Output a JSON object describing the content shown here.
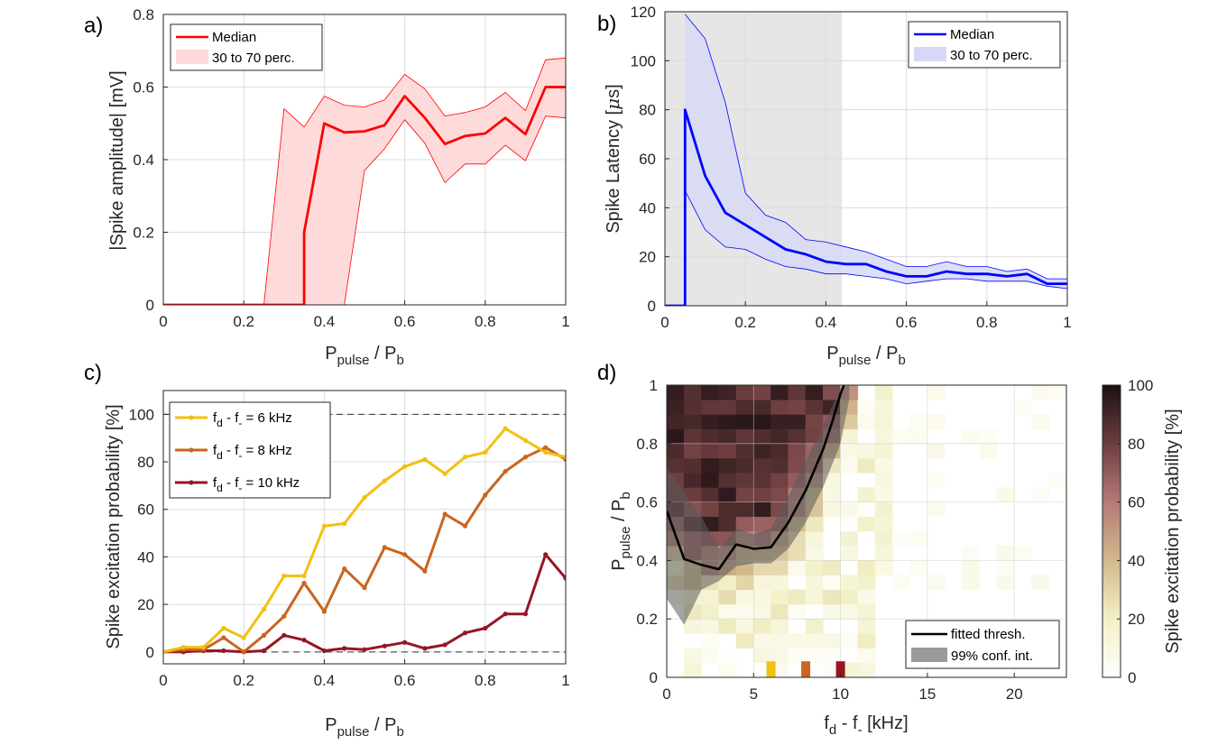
{
  "chart_data": [
    {
      "panel_label": "a)",
      "type": "line",
      "xlabel": {
        "main": "P",
        "sub1": "pulse",
        "mid": " / P",
        "sub2": "b"
      },
      "ylabel": "|Spike amplitude| [mV]",
      "xlim": [
        0,
        1
      ],
      "ylim": [
        0,
        0.8
      ],
      "xticks": [
        "0",
        "0.2",
        "0.4",
        "0.6",
        "0.8",
        "1"
      ],
      "yticks": [
        "0",
        "0.2",
        "0.4",
        "0.6",
        "0.8"
      ],
      "grid": true,
      "legend_position": "top-left",
      "legend": [
        "Median",
        "30 to 70 perc."
      ],
      "series": [
        {
          "name": "Median",
          "color": "#ff0000",
          "x": [
            0,
            0.25,
            0.3,
            0.35,
            0.35,
            0.4,
            0.45,
            0.5,
            0.55,
            0.6,
            0.65,
            0.7,
            0.75,
            0.8,
            0.85,
            0.9,
            0.95,
            1.0
          ],
          "y": [
            0,
            0,
            0,
            0,
            0.2,
            0.5,
            0.475,
            0.478,
            0.495,
            0.575,
            0.515,
            0.443,
            0.465,
            0.472,
            0.515,
            0.47,
            0.6,
            0.6
          ]
        },
        {
          "name": "30 to 70 perc.",
          "color": "#ff0000",
          "fill": "#ffdada",
          "x": [
            0,
            0.25,
            0.3,
            0.35,
            0.4,
            0.45,
            0.5,
            0.55,
            0.6,
            0.65,
            0.7,
            0.75,
            0.8,
            0.85,
            0.9,
            0.95,
            1.0
          ],
          "upper": [
            0,
            0,
            0.54,
            0.49,
            0.575,
            0.55,
            0.545,
            0.565,
            0.635,
            0.595,
            0.52,
            0.53,
            0.545,
            0.585,
            0.535,
            0.675,
            0.68
          ],
          "lower": [
            0,
            0,
            0,
            0,
            0,
            0,
            0.37,
            0.43,
            0.51,
            0.445,
            0.337,
            0.388,
            0.388,
            0.44,
            0.397,
            0.52,
            0.515
          ]
        }
      ]
    },
    {
      "panel_label": "b)",
      "type": "line",
      "xlabel": {
        "main": "P",
        "sub1": "pulse",
        "mid": " / P",
        "sub2": "b"
      },
      "ylabel": {
        "main": "Spike Latency [",
        "mu": "μ",
        "end": "s]"
      },
      "xlim": [
        0,
        1
      ],
      "ylim": [
        0,
        120
      ],
      "xticks": [
        "0",
        "0.2",
        "0.4",
        "0.6",
        "0.8",
        "1"
      ],
      "yticks": [
        "0",
        "20",
        "40",
        "60",
        "80",
        "100",
        "120"
      ],
      "grid": true,
      "shaded_region": {
        "x": [
          0,
          0.44
        ],
        "color": "#e6e6e6"
      },
      "legend_position": "top-right",
      "legend": [
        "Median",
        "30 to 70 perc."
      ],
      "series": [
        {
          "name": "Median",
          "color": "#0000ff",
          "x": [
            0,
            0.05,
            0.05,
            0.1,
            0.15,
            0.2,
            0.25,
            0.3,
            0.35,
            0.4,
            0.45,
            0.5,
            0.55,
            0.6,
            0.65,
            0.7,
            0.75,
            0.8,
            0.85,
            0.9,
            0.95,
            1.0
          ],
          "y": [
            0,
            0,
            80,
            53,
            38,
            33,
            28,
            23,
            21,
            18,
            17,
            17,
            14,
            12,
            12,
            14,
            13,
            13,
            12,
            13,
            9,
            9
          ]
        },
        {
          "name": "30 to 70 perc.",
          "color": "#0000ff",
          "fill": "#d6d9f5",
          "x": [
            0.05,
            0.1,
            0.15,
            0.2,
            0.25,
            0.3,
            0.35,
            0.4,
            0.45,
            0.5,
            0.55,
            0.6,
            0.65,
            0.7,
            0.75,
            0.8,
            0.85,
            0.9,
            0.95,
            1.0
          ],
          "upper": [
            119,
            109,
            83,
            46,
            37,
            34,
            27,
            26,
            24,
            22,
            19,
            16,
            16,
            18,
            16,
            16,
            14,
            15,
            11,
            11
          ],
          "lower": [
            47,
            31,
            24,
            23,
            19,
            16,
            15,
            13,
            13,
            12,
            11,
            9,
            10,
            11,
            11,
            10,
            10,
            10,
            8,
            7
          ]
        }
      ]
    },
    {
      "panel_label": "c)",
      "type": "line",
      "xlabel": {
        "main": "P",
        "sub1": "pulse",
        "mid": " / P",
        "sub2": "b"
      },
      "ylabel": "Spike excitation probability [%]",
      "xlim": [
        0,
        1
      ],
      "ylim": [
        -5,
        110
      ],
      "xticks": [
        "0",
        "0.2",
        "0.4",
        "0.6",
        "0.8",
        "1"
      ],
      "yticks": [
        "0",
        "20",
        "40",
        "60",
        "80",
        "100"
      ],
      "grid": true,
      "reference_lines": [
        0,
        100
      ],
      "legend_position": "top-left",
      "legend_prefix": {
        "f": "f",
        "d": "d",
        "dash": " - f",
        "minus": "-",
        "eq": " = "
      },
      "series": [
        {
          "name": "6 kHz",
          "color": "#f2c010",
          "x": [
            0,
            0.05,
            0.1,
            0.15,
            0.2,
            0.25,
            0.3,
            0.35,
            0.4,
            0.45,
            0.5,
            0.55,
            0.6,
            0.65,
            0.7,
            0.75,
            0.8,
            0.85,
            0.9,
            0.95,
            1.0
          ],
          "y": [
            0,
            2,
            2,
            10,
            6,
            18,
            32,
            32,
            53,
            54,
            65,
            72,
            78,
            81,
            75,
            82,
            84,
            94,
            89,
            84,
            82
          ]
        },
        {
          "name": "8 kHz",
          "color": "#c9651e",
          "x": [
            0,
            0.05,
            0.1,
            0.15,
            0.2,
            0.25,
            0.3,
            0.35,
            0.4,
            0.45,
            0.5,
            0.55,
            0.6,
            0.65,
            0.7,
            0.75,
            0.8,
            0.85,
            0.9,
            0.95,
            1.0
          ],
          "y": [
            0,
            1,
            1,
            6,
            0,
            7,
            15,
            29,
            17,
            35,
            27,
            44,
            41,
            34,
            58,
            53,
            66,
            76,
            82,
            86,
            81
          ]
        },
        {
          "name": "10 kHz",
          "color": "#961624",
          "x": [
            0,
            0.05,
            0.1,
            0.15,
            0.2,
            0.25,
            0.3,
            0.35,
            0.4,
            0.45,
            0.5,
            0.55,
            0.6,
            0.65,
            0.7,
            0.75,
            0.8,
            0.85,
            0.9,
            0.95,
            1.0
          ],
          "y": [
            0,
            0,
            0.5,
            0.5,
            0,
            0.5,
            7,
            5,
            0.5,
            1.5,
            1,
            2.5,
            4,
            1.5,
            3,
            8,
            10,
            16,
            16,
            41,
            31
          ]
        }
      ]
    },
    {
      "panel_label": "d)",
      "type": "heatmap",
      "xlabel": {
        "f": "f",
        "d": "d",
        "dash": " - f",
        "minus": "-",
        "unit": " [kHz]"
      },
      "ylabel": {
        "main": "P",
        "sub1": "pulse",
        "mid": " / P",
        "sub2": "b"
      },
      "xlim": [
        0,
        23
      ],
      "ylim": [
        0,
        1
      ],
      "xticks": [
        "0",
        "5",
        "10",
        "15",
        "20"
      ],
      "yticks": [
        "0",
        "0.2",
        "0.4",
        "0.6",
        "0.8",
        "1"
      ],
      "grid": true,
      "colorbar": {
        "label": "Spike excitation probability [%]",
        "range": [
          0,
          100
        ],
        "ticks": [
          "0",
          "20",
          "40",
          "60",
          "80",
          "100"
        ]
      },
      "cell_size": {
        "x": 1,
        "y": 0.05
      },
      "thresh_profile": {
        "x": [
          0,
          1,
          2,
          3,
          4,
          5,
          6,
          7,
          8,
          9,
          10,
          11
        ],
        "y": [
          0.55,
          0.4,
          0.39,
          0.37,
          0.42,
          0.44,
          0.44,
          0.52,
          0.6,
          0.73,
          0.88,
          1.05
        ]
      },
      "legend_position": "bottom-right",
      "legend": [
        "fitted thresh.",
        "99% conf. int."
      ],
      "fitted_threshold": {
        "color": "#000000",
        "x": [
          0,
          1,
          2,
          3,
          4,
          5,
          6,
          7,
          8,
          9,
          9.5,
          10,
          10.2
        ],
        "y": [
          0.57,
          0.405,
          0.385,
          0.37,
          0.455,
          0.44,
          0.445,
          0.53,
          0.64,
          0.78,
          0.87,
          0.97,
          1.0
        ]
      },
      "confidence_band": {
        "color": "#5a5a5a",
        "x": [
          0,
          1,
          2,
          3,
          4,
          5,
          6,
          7,
          8,
          9,
          10,
          10.5
        ],
        "upper": [
          0.72,
          0.63,
          0.55,
          0.44,
          0.51,
          0.49,
          0.51,
          0.62,
          0.74,
          0.86,
          0.99,
          1.0
        ],
        "lower": [
          0.27,
          0.18,
          0.3,
          0.33,
          0.38,
          0.39,
          0.39,
          0.44,
          0.53,
          0.65,
          0.8,
          0.95
        ]
      },
      "markers": [
        {
          "x": 6,
          "color": "#f2c010"
        },
        {
          "x": 8,
          "color": "#c9651e"
        },
        {
          "x": 10,
          "color": "#961624"
        }
      ]
    }
  ]
}
